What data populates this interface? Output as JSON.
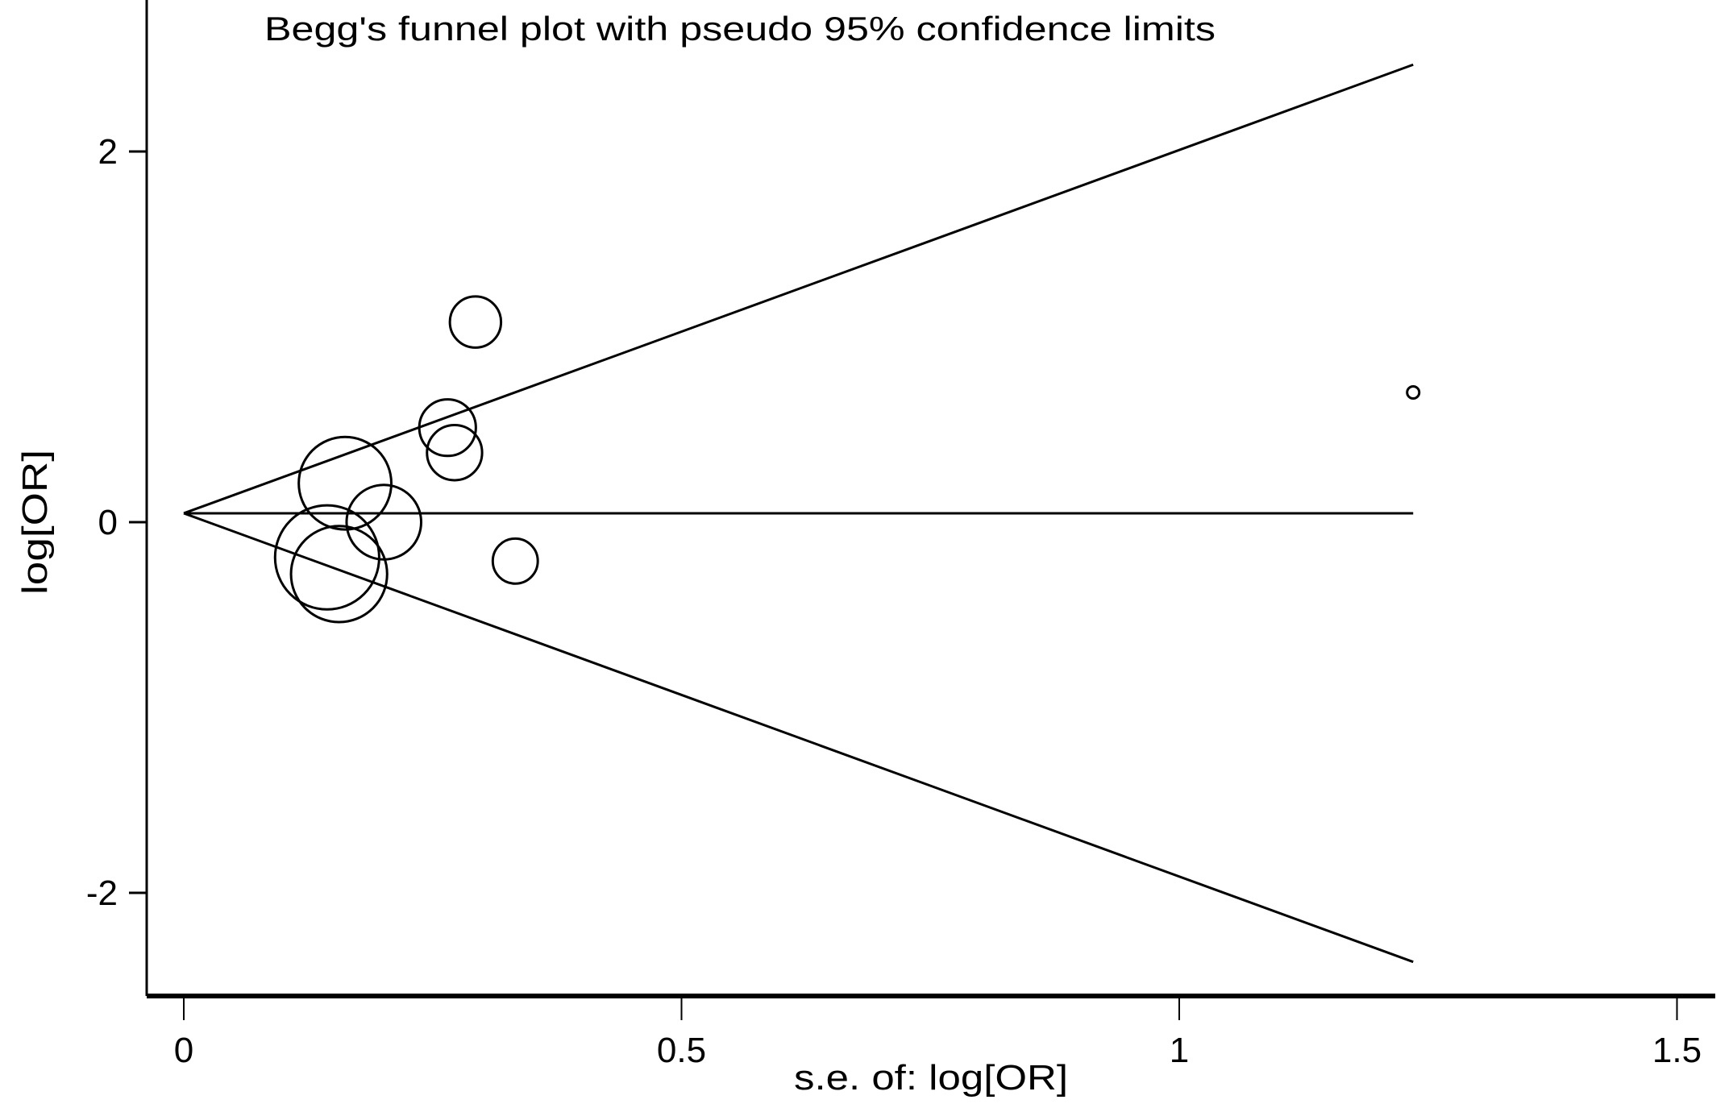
{
  "chart_data": {
    "type": "scatter",
    "title": "Begg's funnel plot with pseudo 95% confidence limits",
    "xlabel": "s.e. of: log[OR]",
    "ylabel": "log[OR]",
    "xlim": [
      -0.07,
      1.53
    ],
    "ylim": [
      -2.55,
      2.8
    ],
    "xticks": [
      0,
      0.5,
      1,
      1.5
    ],
    "xtick_labels": [
      "0",
      "0.5",
      "1",
      "1.5"
    ],
    "yticks": [
      2,
      0,
      -2
    ],
    "ytick_labels": [
      "2",
      "0",
      "-2"
    ],
    "grid": false,
    "pooled_estimate": 0.048,
    "confidence_multiplier": 1.96,
    "funnel_max_se": 1.235,
    "points": [
      {
        "se": 0.293,
        "logOR": 1.08
      },
      {
        "se": 0.265,
        "logOR": 0.51
      },
      {
        "se": 0.272,
        "logOR": 0.375
      },
      {
        "se": 0.162,
        "logOR": 0.21
      },
      {
        "se": 0.201,
        "logOR": 0.0
      },
      {
        "se": 0.144,
        "logOR": -0.19
      },
      {
        "se": 0.156,
        "logOR": -0.28
      },
      {
        "se": 0.333,
        "logOR": -0.21
      },
      {
        "se": 1.235,
        "logOR": 0.7
      }
    ],
    "marker": "circle sized by weight (1/se)",
    "line_color": "#000000"
  }
}
